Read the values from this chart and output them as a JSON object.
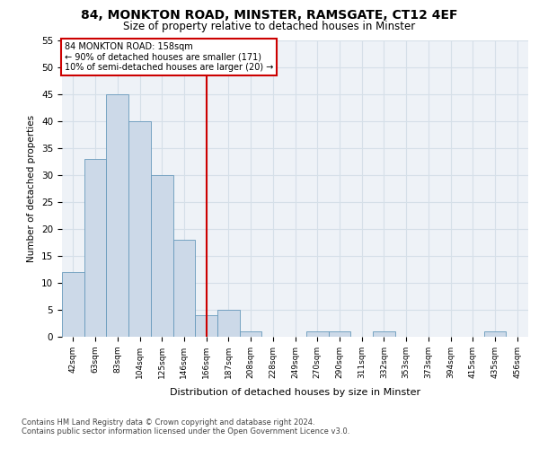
{
  "title_line1": "84, MONKTON ROAD, MINSTER, RAMSGATE, CT12 4EF",
  "title_line2": "Size of property relative to detached houses in Minster",
  "xlabel": "Distribution of detached houses by size in Minster",
  "ylabel": "Number of detached properties",
  "categories": [
    "42sqm",
    "63sqm",
    "83sqm",
    "104sqm",
    "125sqm",
    "146sqm",
    "166sqm",
    "187sqm",
    "208sqm",
    "228sqm",
    "249sqm",
    "270sqm",
    "290sqm",
    "311sqm",
    "332sqm",
    "353sqm",
    "373sqm",
    "394sqm",
    "415sqm",
    "435sqm",
    "456sqm"
  ],
  "values": [
    12,
    33,
    45,
    40,
    30,
    18,
    4,
    5,
    1,
    0,
    0,
    1,
    1,
    0,
    1,
    0,
    0,
    0,
    0,
    1,
    0
  ],
  "bar_color": "#ccd9e8",
  "bar_edge_color": "#6699bb",
  "grid_color": "#d5dfe8",
  "reference_line_x": 6,
  "reference_line_color": "#cc0000",
  "annotation_text": "84 MONKTON ROAD: 158sqm\n← 90% of detached houses are smaller (171)\n10% of semi-detached houses are larger (20) →",
  "annotation_box_color": "#cc0000",
  "ylim": [
    0,
    55
  ],
  "yticks": [
    0,
    5,
    10,
    15,
    20,
    25,
    30,
    35,
    40,
    45,
    50,
    55
  ],
  "footer_line1": "Contains HM Land Registry data © Crown copyright and database right 2024.",
  "footer_line2": "Contains public sector information licensed under the Open Government Licence v3.0.",
  "background_color": "#eef2f7"
}
